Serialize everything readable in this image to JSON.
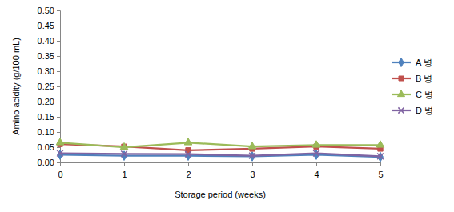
{
  "chart_data": {
    "type": "line",
    "x_label": "Storage period (weeks)",
    "y_label": "Amino acidity (g/100 mL)",
    "x": [
      0,
      1,
      2,
      3,
      4,
      5
    ],
    "xlim": [
      0,
      5
    ],
    "xticks": [
      0,
      1,
      2,
      3,
      4,
      5
    ],
    "ylim": [
      0,
      0.5
    ],
    "yticks": [
      {
        "value": 0,
        "label": "0.00"
      },
      {
        "value": 0.05,
        "label": "0.05"
      },
      {
        "value": 0.1,
        "label": "0.10"
      },
      {
        "value": 0.15,
        "label": "0.15"
      },
      {
        "value": 0.2,
        "label": "0.20"
      },
      {
        "value": 0.25,
        "label": "0.25"
      },
      {
        "value": 0.3,
        "label": "0.30"
      },
      {
        "value": 0.35,
        "label": "0.35"
      },
      {
        "value": 0.4,
        "label": "0.40"
      },
      {
        "value": 0.45,
        "label": "0.45"
      },
      {
        "value": 0.5,
        "label": "0.50"
      }
    ],
    "grid": false,
    "legend": "right",
    "series": [
      {
        "name": "A 병",
        "color": "#4f81bd",
        "marker": "diamond",
        "values": [
          0.025,
          0.022,
          0.022,
          0.02,
          0.025,
          0.018
        ]
      },
      {
        "name": "B 병",
        "color": "#c0504d",
        "marker": "square",
        "values": [
          0.06,
          0.052,
          0.04,
          0.045,
          0.052,
          0.045
        ]
      },
      {
        "name": "C 병",
        "color": "#9bbb59",
        "marker": "triangle",
        "values": [
          0.065,
          0.05,
          0.065,
          0.052,
          0.057,
          0.057
        ]
      },
      {
        "name": "D 병",
        "color": "#8064a2",
        "marker": "x",
        "values": [
          0.03,
          0.028,
          0.027,
          0.022,
          0.03,
          0.02
        ]
      }
    ]
  }
}
